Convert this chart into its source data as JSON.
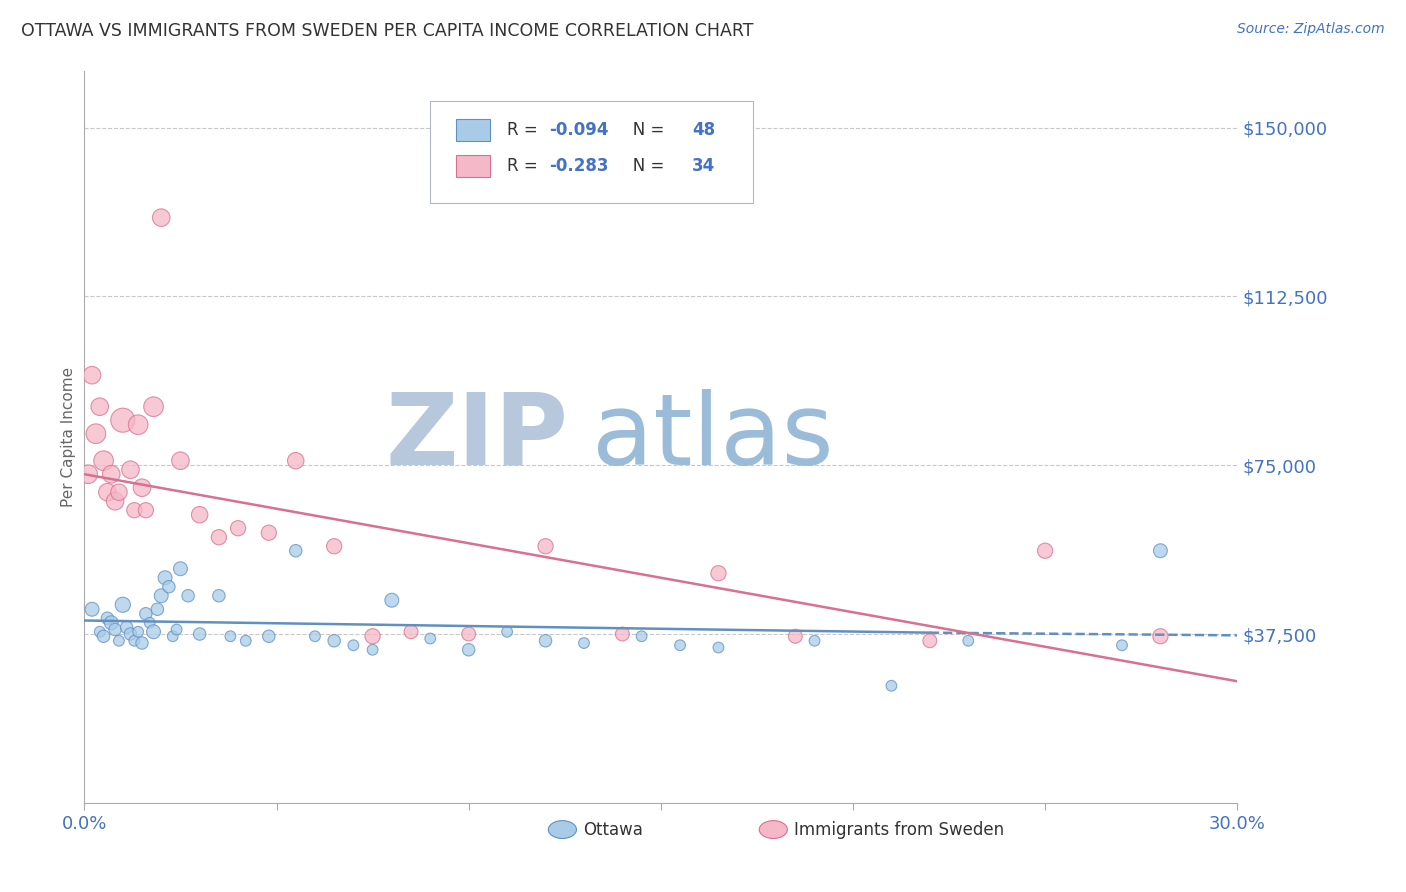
{
  "title": "OTTAWA VS IMMIGRANTS FROM SWEDEN PER CAPITA INCOME CORRELATION CHART",
  "source": "Source: ZipAtlas.com",
  "ylabel": "Per Capita Income",
  "xlim": [
    0.0,
    0.3
  ],
  "ylim": [
    0,
    162500
  ],
  "yticks": [
    0,
    37500,
    75000,
    112500,
    150000
  ],
  "ytick_labels": [
    "",
    "$37,500",
    "$75,000",
    "$112,500",
    "$150,000"
  ],
  "xticks": [
    0.0,
    0.05,
    0.1,
    0.15,
    0.2,
    0.25,
    0.3
  ],
  "xtick_labels": [
    "0.0%",
    "",
    "",
    "",
    "",
    "",
    "30.0%"
  ],
  "legend_r1": "R = -0.094   N = 48",
  "legend_r2": "R = -0.283   N = 34",
  "legend_labels_bottom": [
    "Ottawa",
    "Immigrants from Sweden"
  ],
  "watermark_zip": "ZIP",
  "watermark_atlas": "atlas",
  "watermark_color_zip": "#b8c8dc",
  "watermark_color_atlas": "#9bbcd8",
  "title_color": "#333333",
  "axis_label_color": "#4472c4",
  "grid_color": "#c8c8c8",
  "ottawa_color": "#a8cce8",
  "sweden_color": "#f4b8c8",
  "ottawa_edge": "#6090c0",
  "sweden_edge": "#d87090",
  "ottawa_scatter_x": [
    0.002,
    0.004,
    0.005,
    0.006,
    0.007,
    0.008,
    0.009,
    0.01,
    0.011,
    0.012,
    0.013,
    0.014,
    0.015,
    0.016,
    0.017,
    0.018,
    0.019,
    0.02,
    0.021,
    0.022,
    0.023,
    0.024,
    0.025,
    0.027,
    0.03,
    0.035,
    0.038,
    0.042,
    0.048,
    0.055,
    0.06,
    0.065,
    0.07,
    0.075,
    0.08,
    0.09,
    0.1,
    0.11,
    0.12,
    0.13,
    0.145,
    0.155,
    0.165,
    0.19,
    0.21,
    0.23,
    0.27,
    0.28
  ],
  "ottawa_scatter_y": [
    43000,
    38000,
    37000,
    41000,
    40000,
    38500,
    36000,
    44000,
    39000,
    37500,
    36000,
    38000,
    35500,
    42000,
    40000,
    38000,
    43000,
    46000,
    50000,
    48000,
    37000,
    38500,
    52000,
    46000,
    37500,
    46000,
    37000,
    36000,
    37000,
    56000,
    37000,
    36000,
    35000,
    34000,
    45000,
    36500,
    34000,
    38000,
    36000,
    35500,
    37000,
    35000,
    34500,
    36000,
    26000,
    36000,
    35000,
    56000
  ],
  "ottawa_scatter_s": [
    100,
    60,
    80,
    80,
    100,
    80,
    60,
    120,
    80,
    80,
    60,
    60,
    80,
    80,
    60,
    100,
    80,
    100,
    100,
    80,
    60,
    60,
    100,
    80,
    80,
    80,
    60,
    60,
    80,
    80,
    60,
    80,
    60,
    60,
    100,
    60,
    80,
    60,
    80,
    60,
    60,
    60,
    60,
    60,
    60,
    60,
    60,
    100
  ],
  "sweden_scatter_x": [
    0.001,
    0.002,
    0.003,
    0.004,
    0.005,
    0.006,
    0.007,
    0.008,
    0.009,
    0.01,
    0.012,
    0.013,
    0.014,
    0.015,
    0.016,
    0.018,
    0.02,
    0.025,
    0.03,
    0.035,
    0.04,
    0.048,
    0.055,
    0.065,
    0.075,
    0.085,
    0.1,
    0.12,
    0.14,
    0.165,
    0.185,
    0.22,
    0.25,
    0.28
  ],
  "sweden_scatter_y": [
    73000,
    95000,
    82000,
    88000,
    76000,
    69000,
    73000,
    67000,
    69000,
    85000,
    74000,
    65000,
    84000,
    70000,
    65000,
    88000,
    130000,
    76000,
    64000,
    59000,
    61000,
    60000,
    76000,
    57000,
    37000,
    38000,
    37500,
    57000,
    37500,
    51000,
    37000,
    36000,
    56000,
    37000
  ],
  "sweden_scatter_s": [
    180,
    160,
    200,
    160,
    200,
    160,
    160,
    160,
    140,
    300,
    160,
    120,
    200,
    160,
    120,
    200,
    160,
    160,
    140,
    120,
    120,
    120,
    140,
    120,
    120,
    100,
    100,
    120,
    100,
    120,
    100,
    100,
    120,
    120
  ],
  "ottawa_trend_x": [
    0.0,
    0.22,
    0.3
  ],
  "ottawa_trend_y": [
    40500,
    37800,
    37200
  ],
  "ottawa_dash_from": 0.22,
  "sweden_trend_x": [
    0.0,
    0.3
  ],
  "sweden_trend_y": [
    73000,
    27000
  ],
  "figsize": [
    14.06,
    8.92
  ],
  "dpi": 100
}
